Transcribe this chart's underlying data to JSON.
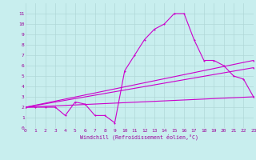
{
  "background_color": "#c8eeee",
  "grid_color": "#b0d8d8",
  "line_color": "#cc00cc",
  "xlabel": "Windchill (Refroidissement éolien,°C)",
  "xlabel_color": "#990099",
  "tick_color": "#990099",
  "ylim": [
    0,
    12
  ],
  "xlim": [
    0,
    23
  ],
  "yticks": [
    0,
    1,
    2,
    3,
    4,
    5,
    6,
    7,
    8,
    9,
    10,
    11
  ],
  "xticks": [
    0,
    1,
    2,
    3,
    4,
    5,
    6,
    7,
    8,
    9,
    10,
    11,
    12,
    13,
    14,
    15,
    16,
    17,
    18,
    19,
    20,
    21,
    22,
    23
  ],
  "line1_x": [
    0,
    1,
    2,
    3,
    4,
    5,
    6,
    7,
    8,
    9,
    10,
    11,
    12,
    13,
    14,
    15,
    16,
    17,
    18,
    19,
    20,
    21,
    22,
    23
  ],
  "line1_y": [
    2,
    2,
    2,
    2,
    1.2,
    2.5,
    2.3,
    1.2,
    1.2,
    0.5,
    5.5,
    7,
    8.5,
    9.5,
    10,
    11,
    11,
    8.5,
    6.5,
    6.5,
    6,
    5,
    4.7,
    3
  ],
  "line2_x": [
    0,
    23
  ],
  "line2_y": [
    2,
    6.5
  ],
  "line3_x": [
    0,
    23
  ],
  "line3_y": [
    2,
    3.0
  ],
  "line4_x": [
    0,
    23
  ],
  "line4_y": [
    2,
    5.8
  ]
}
